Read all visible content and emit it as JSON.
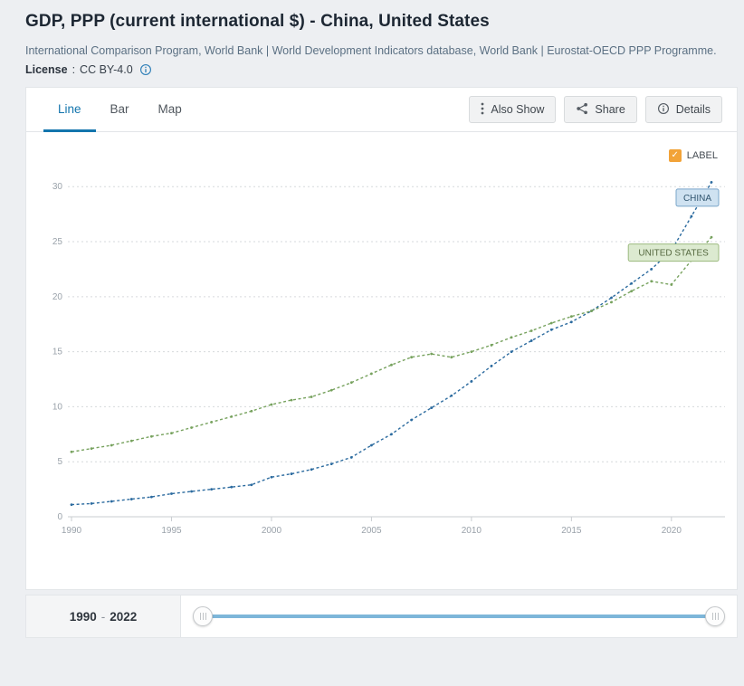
{
  "header": {
    "title": "GDP, PPP (current international $) - China, United States",
    "source_line": "International Comparison Program, World Bank | World Development Indicators database, World Bank | Eurostat-OECD PPP Programme.",
    "license_label": "License",
    "license_separator": ":",
    "license_value": "CC BY-4.0"
  },
  "icons": {
    "license_info": "info-circle",
    "also_show": "vertical-ellipsis",
    "share": "share-nodes",
    "details": "info-circle",
    "checkbox_check": "✓",
    "slider_handle": "grip-lines-vertical"
  },
  "tabs": [
    {
      "label": "Line",
      "active": true
    },
    {
      "label": "Bar",
      "active": false
    },
    {
      "label": "Map",
      "active": false
    }
  ],
  "toolbar": {
    "also_show_label": "Also Show",
    "share_label": "Share",
    "details_label": "Details"
  },
  "chart_controls": {
    "label_checkbox_text": "LABEL",
    "checked": true,
    "checkbox_color": "#f2a338"
  },
  "chart_data": {
    "type": "line",
    "title": "GDP, PPP (current international $) - China, United States",
    "values_unit": "trillions of current international $ (axis shows 0-30)",
    "x": [
      1990,
      1991,
      1992,
      1993,
      1994,
      1995,
      1996,
      1997,
      1998,
      1999,
      2000,
      2001,
      2002,
      2003,
      2004,
      2005,
      2006,
      2007,
      2008,
      2009,
      2010,
      2011,
      2012,
      2013,
      2014,
      2015,
      2016,
      2017,
      2018,
      2019,
      2020,
      2021,
      2022
    ],
    "series": [
      {
        "name": "CHINA",
        "color": "#2c6b9f",
        "badge_fill": "#cfe2f1",
        "badge_border": "#7aa5c9",
        "badge_text_color": "#31556f",
        "values": [
          1.1,
          1.2,
          1.4,
          1.6,
          1.8,
          2.1,
          2.3,
          2.5,
          2.7,
          2.9,
          3.6,
          3.9,
          4.3,
          4.8,
          5.4,
          6.5,
          7.5,
          8.8,
          9.9,
          11.0,
          12.3,
          13.7,
          15.0,
          16.0,
          17.0,
          17.7,
          18.7,
          19.9,
          21.2,
          22.5,
          24.2,
          27.3,
          30.4
        ]
      },
      {
        "name": "UNITED STATES",
        "color": "#77a25e",
        "badge_fill": "#dcead0",
        "badge_border": "#9cba7f",
        "badge_text_color": "#55683f",
        "values": [
          5.9,
          6.2,
          6.5,
          6.9,
          7.3,
          7.6,
          8.1,
          8.6,
          9.1,
          9.6,
          10.2,
          10.6,
          10.9,
          11.5,
          12.2,
          13.0,
          13.8,
          14.5,
          14.8,
          14.5,
          15.0,
          15.6,
          16.3,
          16.9,
          17.6,
          18.2,
          18.7,
          19.5,
          20.5,
          21.4,
          21.1,
          23.3,
          25.4
        ]
      }
    ],
    "xlim": [
      1990,
      2022
    ],
    "ylim": [
      0,
      31.5
    ],
    "yticks": [
      0,
      5,
      10,
      15,
      20,
      25,
      30
    ],
    "xticks": [
      1990,
      1995,
      2000,
      2005,
      2010,
      2015,
      2020
    ],
    "grid": "horizontal-dashed",
    "line_style": "dashed-with-point-markers",
    "legend": "inline-country-badges"
  },
  "timeline": {
    "start": "1990",
    "separator": "-",
    "end": "2022"
  }
}
